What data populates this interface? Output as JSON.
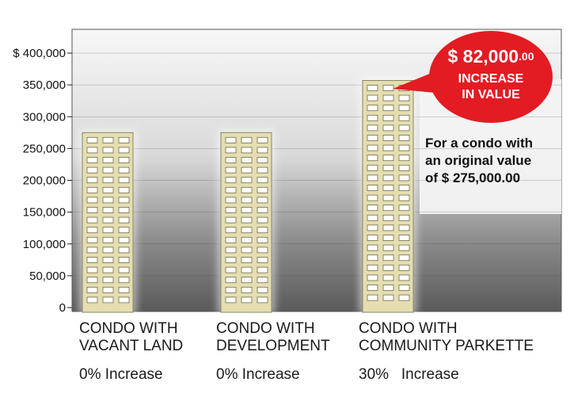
{
  "chart_data": {
    "type": "bar",
    "categories": [
      "CONDO WITH VACANT LAND",
      "CONDO WITH DEVELOPMENT",
      "CONDO WITH COMMUNITY PARKETTE"
    ],
    "category_lines": [
      [
        "CONDO WITH",
        "VACANT LAND"
      ],
      [
        "CONDO WITH",
        "DEVELOPMENT"
      ],
      [
        "CONDO WITH",
        "COMMUNITY PARKETTE"
      ]
    ],
    "values": [
      275000,
      275000,
      357000
    ],
    "increase_labels": [
      "0% Increase",
      "0% Increase",
      "30%   Increase"
    ],
    "ytick_labels": [
      "$ 400,000",
      "350,000",
      "300,000",
      "250,000",
      "200,000",
      "150,000",
      "100,000",
      "50,000",
      "0"
    ],
    "ylim": [
      0,
      400000
    ],
    "yticks": [
      400000,
      350000,
      300000,
      250000,
      200000,
      150000,
      100000,
      50000,
      0
    ],
    "grid": true,
    "callout": {
      "amount": "$ 82,000",
      "cents": ".00",
      "line1": "INCREASE",
      "line2": "IN VALUE",
      "color": "#e31b23"
    },
    "annotation_lines": [
      "For a condo with",
      "an original value",
      "of $ 275,000.00"
    ]
  },
  "colors": {
    "building_fill": "#e4deb0",
    "window_fill": "#ffffff",
    "plot_border": "#555555"
  }
}
